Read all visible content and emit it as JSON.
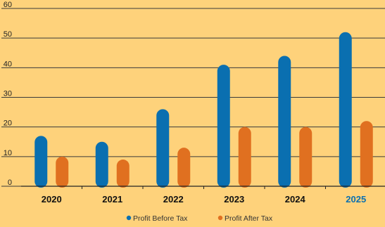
{
  "chart_data": {
    "type": "bar",
    "categories": [
      "2020",
      "2021",
      "2022",
      "2023",
      "2024",
      "2025"
    ],
    "highlight_category": "2025",
    "series": [
      {
        "name": "Profit Before Tax",
        "values": [
          17,
          15,
          26,
          41,
          44,
          52
        ],
        "color": "#0a6fb0"
      },
      {
        "name": "Profit After Tax",
        "values": [
          10,
          9,
          13,
          20,
          20,
          22
        ],
        "color": "#e07020"
      }
    ],
    "ylim": [
      0,
      60
    ],
    "yticks": [
      0,
      10,
      20,
      30,
      40,
      50,
      60
    ],
    "grid": true,
    "legend_position": "bottom-center",
    "colors": {
      "background": "#fed27b",
      "grid": "#3a3a3a",
      "category_text": "#111111",
      "highlight_text": "#0a6fb0"
    }
  }
}
